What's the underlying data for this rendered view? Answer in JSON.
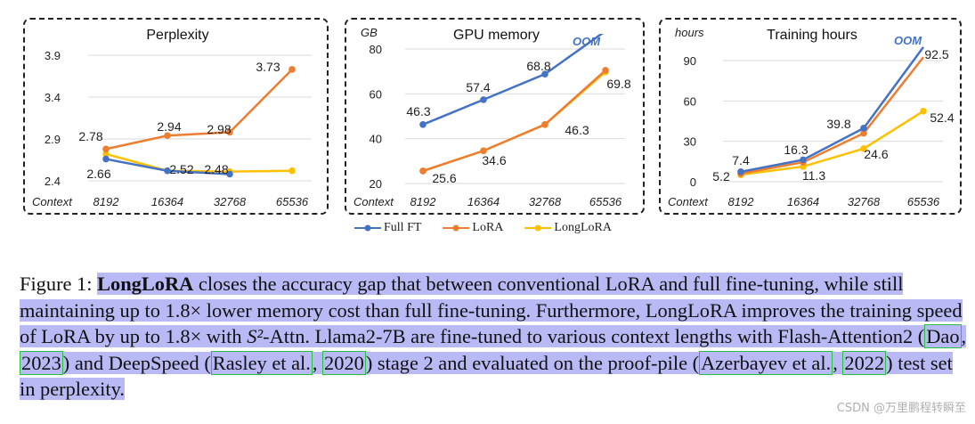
{
  "chart_data": [
    {
      "type": "line",
      "title": "Perplexity",
      "ylabel": "",
      "xlabel": "Context",
      "categories": [
        "8192",
        "16364",
        "32768",
        "65536"
      ],
      "yticks": [
        "2.4",
        "2.9",
        "3.4",
        "3.9"
      ],
      "ylim": [
        2.4,
        3.9
      ],
      "series": [
        {
          "name": "Full FT",
          "color": "#4472c4",
          "values": [
            2.66,
            2.52,
            2.48,
            null
          ]
        },
        {
          "name": "LoRA",
          "color": "#ed7d31",
          "values": [
            2.78,
            2.94,
            2.98,
            3.73
          ]
        },
        {
          "name": "LongLoRA",
          "color": "#ffc000",
          "values": [
            2.72,
            2.52,
            2.51,
            2.52
          ]
        }
      ],
      "data_labels": [
        "2.78",
        "2.66",
        "2.94",
        "2.52",
        "2.98",
        "2.48",
        "3.73"
      ],
      "oom": ""
    },
    {
      "type": "line",
      "title": "GPU memory",
      "ylabel": "GB",
      "xlabel": "Context",
      "categories": [
        "8192",
        "16364",
        "32768",
        "65536"
      ],
      "yticks": [
        "20",
        "40",
        "60",
        "80"
      ],
      "ylim": [
        20,
        80
      ],
      "series": [
        {
          "name": "Full FT",
          "color": "#4472c4",
          "values": [
            46.3,
            57.4,
            68.8,
            88
          ]
        },
        {
          "name": "LoRA",
          "color": "#ed7d31",
          "values": [
            25.6,
            34.6,
            46.3,
            70.5
          ]
        },
        {
          "name": "LongLoRA",
          "color": "#ffc000",
          "values": [
            25.6,
            34.6,
            46.3,
            69.8
          ]
        }
      ],
      "data_labels": [
        "46.3",
        "25.6",
        "57.4",
        "34.6",
        "68.8",
        "46.3",
        "69.8"
      ],
      "oom": "OOM"
    },
    {
      "type": "line",
      "title": "Training hours",
      "ylabel": "hours",
      "xlabel": "Context",
      "categories": [
        "8192",
        "16364",
        "32768",
        "65536"
      ],
      "yticks": [
        "0",
        "30",
        "60",
        "90"
      ],
      "ylim": [
        0,
        90
      ],
      "series": [
        {
          "name": "Full FT",
          "color": "#4472c4",
          "values": [
            7.4,
            16.3,
            39.8,
            100
          ]
        },
        {
          "name": "LoRA",
          "color": "#ed7d31",
          "values": [
            6.0,
            14.5,
            36.0,
            92.5
          ]
        },
        {
          "name": "LongLoRA",
          "color": "#ffc000",
          "values": [
            5.2,
            11.3,
            24.6,
            52.4
          ]
        }
      ],
      "data_labels": [
        "7.4",
        "5.2",
        "16.3",
        "11.3",
        "39.8",
        "24.6",
        "92.5",
        "52.4"
      ],
      "oom": "OOM"
    }
  ],
  "legend": [
    {
      "name": "Full FT",
      "color": "#4472c4"
    },
    {
      "name": "LoRA",
      "color": "#ed7d31"
    },
    {
      "name": "LongLoRA",
      "color": "#ffc000"
    }
  ],
  "caption": {
    "fig_label": "Figure 1: ",
    "bold": "LongLoRA",
    "text1": " closes the accuracy gap that between conventional LoRA and full fine-tuning, while still maintaining up to 1.8× lower memory cost than full fine-tuning. Furthermore, LongLoRA improves the training speed of LoRA by up to 1.8× with ",
    "math": "S²",
    "text2": "-Attn. Llama2-7B are fine-tuned to various context lengths with Flash-Attention2 (",
    "cite1": "Dao",
    "sep1": ", ",
    "cite1_year": "2023",
    "text3": ") and DeepSpeed (",
    "cite2": "Rasley et al.",
    "sep2": ", ",
    "cite2_year": "2020",
    "text4": ") stage 2 and evaluated on the proof-pile (",
    "cite3": "Azerbayev et al.",
    "sep3": ", ",
    "cite3_year": "2022",
    "text5": ") test set in perplexity."
  },
  "watermark": "CSDN @万里鹏程转瞬至"
}
